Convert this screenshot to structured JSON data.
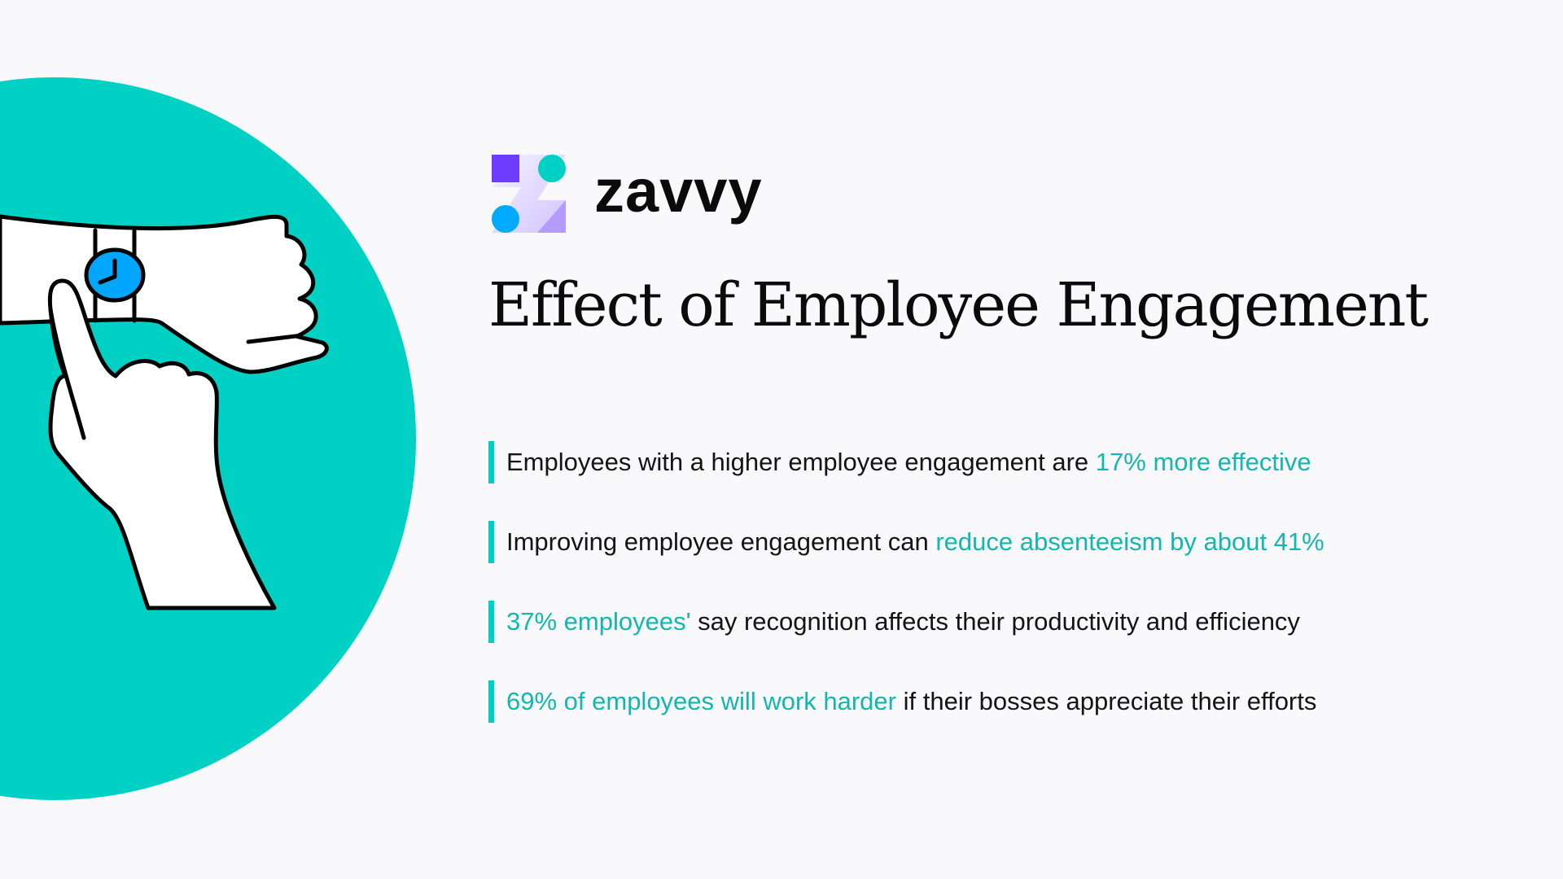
{
  "colors": {
    "accent": "#00d1c4",
    "highlight": "#12b7ad",
    "watch": "#00a6ff",
    "logo_purple": "#6e3cff",
    "logo_teal": "#00d1c4",
    "logo_blue": "#00aaff"
  },
  "brand": {
    "name": "zavvy"
  },
  "title": "Effect of Employee Engagement",
  "illustration": {
    "icon": "hand-pointing-at-wristwatch"
  },
  "facts": [
    {
      "pre": "Employees with a higher employee engagement are ",
      "highlight": "17% more effective",
      "post": ""
    },
    {
      "pre": "Improving employee engagement can ",
      "highlight": "reduce absenteeism by about 41%",
      "post": ""
    },
    {
      "pre": "",
      "highlight": "37% employees'",
      "post": " say recognition affects their productivity and efficiency"
    },
    {
      "pre": "",
      "highlight": "69% of employees will work harder",
      "post": " if their bosses appreciate their efforts"
    }
  ]
}
